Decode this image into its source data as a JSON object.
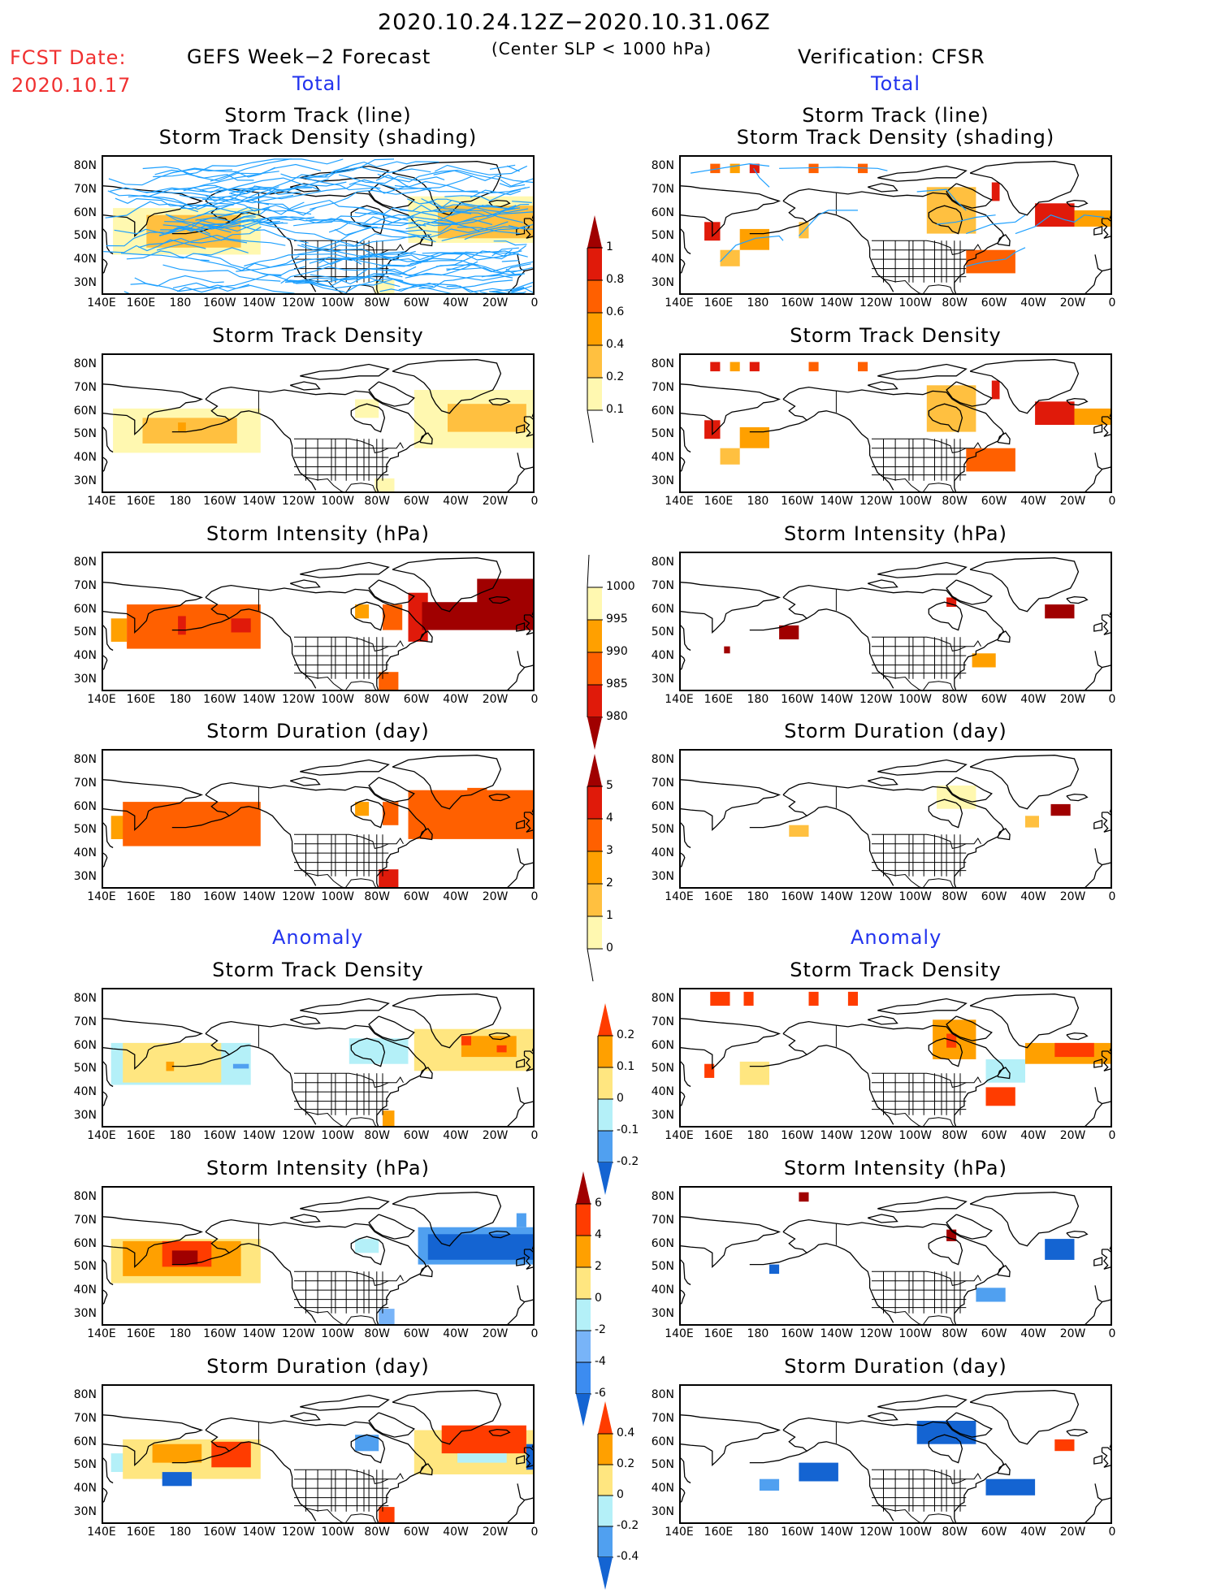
{
  "header": {
    "period": "2020.10.24.12Z−2020.10.31.06Z",
    "criterion": "(Center SLP < 1000 hPa)",
    "fcst_label": "FCST Date:",
    "fcst_date": "2020.10.17",
    "left_title": "GEFS Week−2 Forecast",
    "right_title": "Verification: CFSR",
    "total_label": "Total",
    "anomaly_label": "Anomaly"
  },
  "axes": {
    "lat_ticks": [
      "80N",
      "70N",
      "60N",
      "50N",
      "40N",
      "30N"
    ],
    "lon_ticks": [
      "140E",
      "160E",
      "180",
      "160W",
      "140W",
      "120W",
      "100W",
      "80W",
      "60W",
      "40W",
      "20W",
      "0"
    ]
  },
  "panels": {
    "left": [
      {
        "title1": "Storm Track (line)",
        "title2": "Storm Track Density (shading)",
        "field": "track_density_lines"
      },
      {
        "title1": "Storm Track Density",
        "field": "track_density"
      },
      {
        "title1": "Storm Intensity (hPa)",
        "field": "intensity"
      },
      {
        "title1": "Storm Duration (day)",
        "field": "duration"
      },
      {
        "title1": "Storm Track Density",
        "field": "track_density_anom"
      },
      {
        "title1": "Storm Intensity (hPa)",
        "field": "intensity_anom"
      },
      {
        "title1": "Storm Duration (day)",
        "field": "duration_anom"
      }
    ],
    "right": [
      {
        "title1": "Storm Track (line)",
        "title2": "Storm Track Density (shading)",
        "field": "track_density_lines"
      },
      {
        "title1": "Storm Track Density",
        "field": "track_density"
      },
      {
        "title1": "Storm Intensity (hPa)",
        "field": "intensity"
      },
      {
        "title1": "Storm Duration (day)",
        "field": "duration"
      },
      {
        "title1": "Storm Track Density",
        "field": "track_density_anom"
      },
      {
        "title1": "Storm Intensity (hPa)",
        "field": "intensity_anom"
      },
      {
        "title1": "Storm Duration (day)",
        "field": "duration_anom"
      }
    ]
  },
  "colorbars": [
    {
      "name": "track-density",
      "labels": [
        "1",
        "0.8",
        "0.6",
        "0.4",
        "0.2",
        "0.1"
      ],
      "colors": [
        "#a00000",
        "#e01a0a",
        "#ff6000",
        "#ffa000",
        "#ffc040",
        "#fff8b0"
      ],
      "top_arrow": true,
      "bottom_arrow": false
    },
    {
      "name": "intensity",
      "labels": [
        "1000",
        "995",
        "990",
        "985",
        "980"
      ],
      "colors": [
        "#fff8b0",
        "#ffa000",
        "#ff6000",
        "#e01a0a",
        "#a00000"
      ],
      "top_arrow": false,
      "bottom_arrow": true
    },
    {
      "name": "duration",
      "labels": [
        "5",
        "4",
        "3",
        "2",
        "1",
        "0"
      ],
      "colors": [
        "#a00000",
        "#e01a0a",
        "#ff6000",
        "#ffa000",
        "#ffc040",
        "#fff8b0"
      ],
      "top_arrow": true,
      "bottom_arrow": false
    },
    {
      "name": "track-density-anomaly",
      "labels": [
        "0.2",
        "0.1",
        "0",
        "-0.1",
        "-0.2"
      ],
      "colors": [
        "#ff3c00",
        "#ffa000",
        "#ffe680",
        "#b4f0f8",
        "#50a0f0",
        "#1464d2"
      ],
      "top_arrow": true,
      "bottom_arrow": true
    },
    {
      "name": "intensity-anomaly",
      "labels": [
        "6",
        "4",
        "2",
        "0",
        "-2",
        "-4",
        "-6"
      ],
      "colors": [
        "#a00000",
        "#ff3c00",
        "#ffa000",
        "#ffe680",
        "#b4f0f8",
        "#78b4f8",
        "#3c8cf0",
        "#1464d2"
      ],
      "top_arrow": true,
      "bottom_arrow": true
    },
    {
      "name": "duration-anomaly",
      "labels": [
        "0.4",
        "0.2",
        "0",
        "-0.2",
        "-0.4"
      ],
      "colors": [
        "#ff3c00",
        "#ffa000",
        "#ffe680",
        "#b4f0f8",
        "#50a0f0",
        "#1464d2"
      ],
      "top_arrow": true,
      "bottom_arrow": true
    }
  ],
  "colors": {
    "track_line": "#1ea0ff",
    "fcst_red": "#f03030",
    "section_blue": "#2233ee"
  }
}
